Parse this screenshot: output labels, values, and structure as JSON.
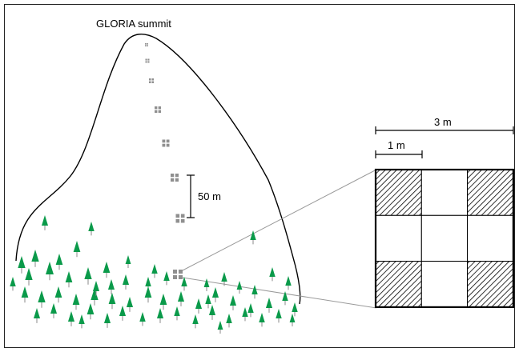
{
  "labels": {
    "summit": "GLORIA summit",
    "scale_3m": "3 m",
    "scale_1m": "1 m",
    "scale_50m": "50 m"
  },
  "colors": {
    "tree": "#0a9a4a",
    "trunk": "#8a8a8a",
    "plot": "#8f8f8f",
    "outline": "#000000",
    "zoom_lines": "#999999"
  },
  "icons": {
    "tree": "conifer-tree-icon",
    "plot": "plot-cluster-icon"
  },
  "plot_grid": {
    "cells": 3,
    "hatched_cells": [
      "top-left",
      "top-right",
      "bottom-left",
      "bottom-right"
    ]
  },
  "plot_count": 8
}
